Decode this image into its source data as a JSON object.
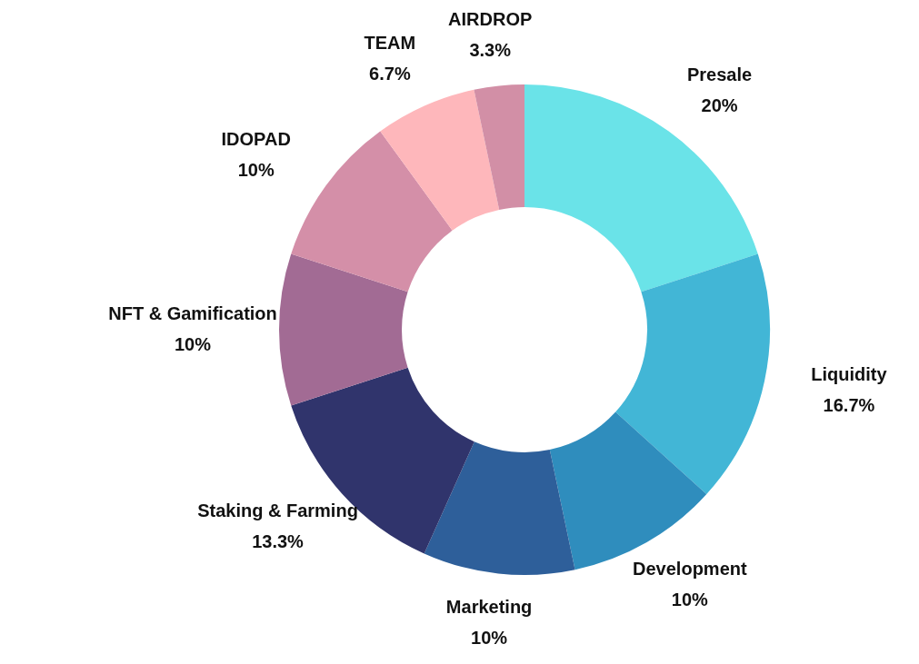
{
  "chart_data": {
    "type": "donut",
    "categories": [
      "Presale",
      "Liquidity",
      "Development",
      "Marketing",
      "Staking & Farming",
      "NFT & Gamification",
      "IDOPAD",
      "TEAM",
      "AIRDROP"
    ],
    "values": [
      20,
      16.7,
      10,
      10,
      13.3,
      10,
      10,
      6.7,
      3.3
    ],
    "value_labels": [
      "20%",
      "16.7%",
      "10%",
      "10%",
      "13.3%",
      "10%",
      "10%",
      "6.7%",
      "3.3%"
    ],
    "colors": [
      "#6ae3e8",
      "#42b6d6",
      "#2f8dbd",
      "#2e5f9a",
      "#30346c",
      "#a26b94",
      "#d48fa8",
      "#feb7bb",
      "#d28fa6"
    ],
    "legend": false
  }
}
